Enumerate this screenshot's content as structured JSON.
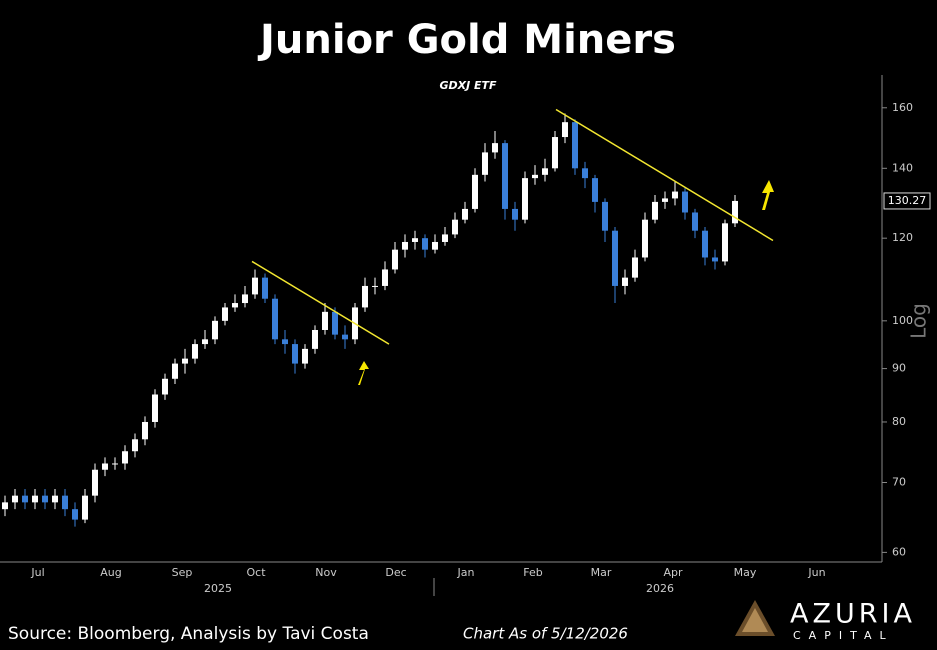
{
  "chart_data": {
    "type": "candlestick",
    "title": "Junior Gold Miners",
    "subtitle": "GDXJ ETF",
    "open": [
      66,
      67,
      68,
      67,
      68,
      67,
      68,
      66,
      64.5,
      68,
      72,
      73,
      73,
      75,
      77,
      80,
      85,
      88,
      91,
      92,
      95,
      96,
      100,
      103,
      104,
      106,
      110,
      105,
      96,
      95,
      91,
      94,
      98,
      102,
      97,
      96,
      103,
      108,
      108,
      112,
      117,
      119,
      120,
      117,
      119,
      121,
      125,
      128,
      138,
      145,
      148,
      128,
      125,
      137,
      138,
      140,
      150,
      155,
      140,
      137,
      130,
      122,
      108,
      110,
      115,
      125,
      130,
      131,
      133,
      127,
      122,
      115,
      114,
      124
    ],
    "high": [
      68,
      69,
      69,
      69,
      69,
      69,
      69,
      67,
      69,
      73,
      74,
      74,
      76,
      78,
      81,
      86,
      89,
      92,
      94,
      96,
      98,
      101,
      104,
      106,
      108,
      112,
      111,
      106,
      98,
      96,
      95,
      99,
      104,
      103,
      99,
      104,
      110,
      110,
      114,
      119,
      121,
      122,
      121,
      121,
      123,
      127,
      130,
      140,
      148,
      152,
      149,
      130,
      139,
      141,
      143,
      152,
      158,
      156,
      142,
      138,
      131,
      123,
      112,
      117,
      127,
      132,
      133,
      136,
      134,
      128,
      123,
      117,
      125,
      132
    ],
    "low": [
      65,
      66,
      66,
      66,
      66,
      66,
      65,
      63.5,
      64,
      67,
      71,
      72,
      72,
      74,
      76,
      79,
      84,
      87,
      89,
      91,
      94,
      95,
      99,
      102,
      103,
      105,
      104,
      95,
      93,
      89,
      90,
      93,
      97,
      96,
      94,
      95,
      102,
      106,
      107,
      111,
      115,
      117,
      115,
      116,
      118,
      120,
      124,
      127,
      136,
      143,
      125,
      122,
      124,
      135,
      136,
      139,
      148,
      138,
      134,
      127,
      119,
      104,
      106,
      109,
      114,
      124,
      128,
      129,
      125,
      120,
      113,
      112,
      113,
      123
    ],
    "close": [
      67,
      68,
      67,
      68,
      67,
      68,
      66,
      64.5,
      68,
      72,
      73,
      73,
      75,
      77,
      80,
      85,
      88,
      91,
      92,
      95,
      96,
      100,
      103,
      104,
      106,
      110,
      105,
      96,
      95,
      91,
      94,
      98,
      102,
      97,
      96,
      103,
      108,
      108,
      112,
      117,
      119,
      120,
      117,
      119,
      121,
      125,
      128,
      138,
      145,
      148,
      128,
      125,
      137,
      138,
      140,
      150,
      155,
      140,
      137,
      130,
      122,
      108,
      110,
      115,
      125,
      130,
      131,
      133,
      127,
      122,
      115,
      114,
      124,
      130.27
    ],
    "up_color": "#ffffff",
    "down_color": "#3a7fd9",
    "xlim": [
      0,
      88
    ],
    "xticks": [
      {
        "value": 3.3,
        "label": "Jul"
      },
      {
        "value": 10.6,
        "label": "Aug"
      },
      {
        "value": 17.7,
        "label": "Sep"
      },
      {
        "value": 25.1,
        "label": "Oct"
      },
      {
        "value": 32.1,
        "label": "Nov"
      },
      {
        "value": 39.1,
        "label": "Dec"
      },
      {
        "value": 46.1,
        "label": "Jan"
      },
      {
        "value": 52.8,
        "label": "Feb"
      },
      {
        "value": 59.6,
        "label": "Mar"
      },
      {
        "value": 66.8,
        "label": "Apr"
      },
      {
        "value": 74,
        "label": "May"
      },
      {
        "value": 81.2,
        "label": "Jun"
      }
    ],
    "year_ticks": [
      {
        "value": 21.3,
        "label": "2025"
      },
      {
        "value": 65.5,
        "label": "2026"
      }
    ],
    "ylim": [
      59,
      172
    ],
    "yticks": [
      60,
      70,
      80,
      90,
      100,
      120,
      140,
      160
    ],
    "log_scale": true,
    "y_scale_label": "Log",
    "trendlines": [
      {
        "x": [
          24.7,
          38.4
        ],
        "y": [
          114,
          95
        ]
      },
      {
        "x": [
          55.1,
          76.8
        ],
        "y": [
          159.4,
          119.4
        ]
      }
    ],
    "trendline_color": "#f2e630"
  },
  "footer": {
    "source": "Source: Bloomberg, Analysis by Tavi Costa",
    "as_of": "Chart As of 5/12/2026",
    "brand": "AZURIA",
    "brand_sub": "CAPITAL"
  }
}
